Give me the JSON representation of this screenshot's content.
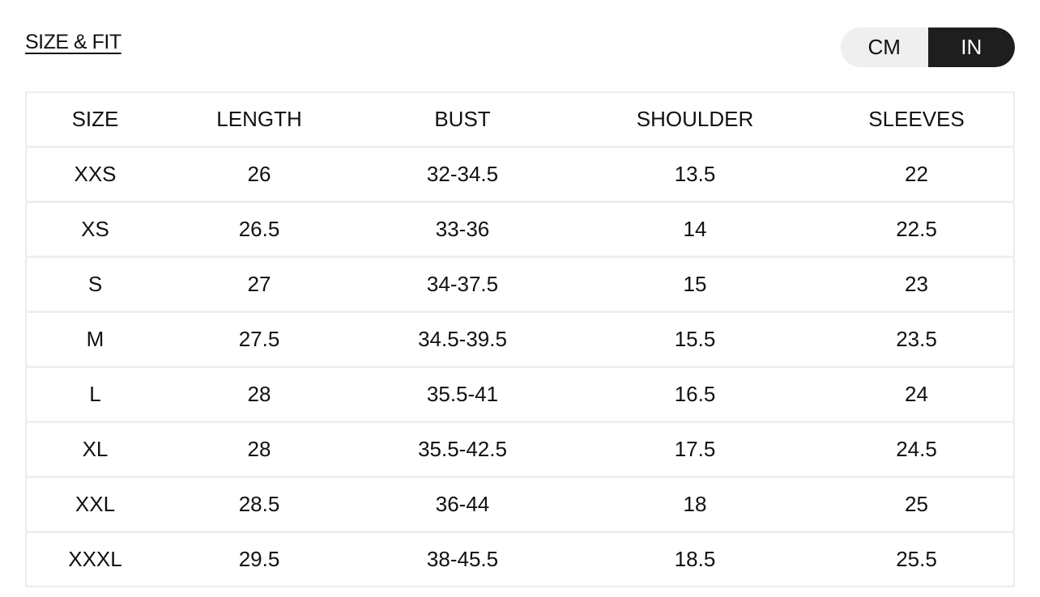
{
  "title": "SIZE & FIT",
  "unit_toggle": {
    "options": [
      "CM",
      "IN"
    ],
    "selected": "IN"
  },
  "table": {
    "headers": [
      "SIZE",
      "LENGTH",
      "BUST",
      "SHOULDER",
      "SLEEVES"
    ],
    "rows": [
      [
        "XXS",
        "26",
        "32-34.5",
        "13.5",
        "22"
      ],
      [
        "XS",
        "26.5",
        "33-36",
        "14",
        "22.5"
      ],
      [
        "S",
        "27",
        "34-37.5",
        "15",
        "23"
      ],
      [
        "M",
        "27.5",
        "34.5-39.5",
        "15.5",
        "23.5"
      ],
      [
        "L",
        "28",
        "35.5-41",
        "16.5",
        "24"
      ],
      [
        "XL",
        "28",
        "35.5-42.5",
        "17.5",
        "24.5"
      ],
      [
        "XXL",
        "28.5",
        "36-44",
        "18",
        "25"
      ],
      [
        "XXXL",
        "29.5",
        "38-45.5",
        "18.5",
        "25.5"
      ]
    ]
  }
}
